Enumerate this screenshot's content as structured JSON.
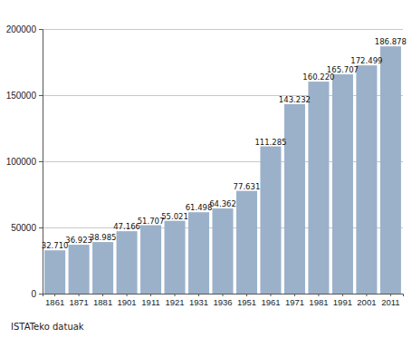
{
  "chart_data": {
    "type": "bar",
    "categories": [
      "1861",
      "1871",
      "1881",
      "1901",
      "1911",
      "1921",
      "1931",
      "1936",
      "1951",
      "1961",
      "1971",
      "1981",
      "1991",
      "2001",
      "2011"
    ],
    "values": [
      32710,
      36923,
      38985,
      47166,
      51707,
      55021,
      61498,
      64362,
      77631,
      111285,
      143232,
      160220,
      165707,
      172499,
      186878
    ],
    "value_labels": [
      "32.710",
      "36.923",
      "38.985",
      "47.166",
      "51.707",
      "55.021",
      "61.498",
      "64.362",
      "77.631",
      "111.285",
      "143.232",
      "160.220",
      "165.707",
      "172.499",
      "186.878"
    ],
    "data_labels": true,
    "color": "#9bb1c9",
    "ylim": [
      0,
      200000
    ],
    "yticks": [
      0,
      50000,
      100000,
      150000,
      200000
    ],
    "grid": true,
    "annotations": [
      "ISTATeko datuak"
    ]
  }
}
